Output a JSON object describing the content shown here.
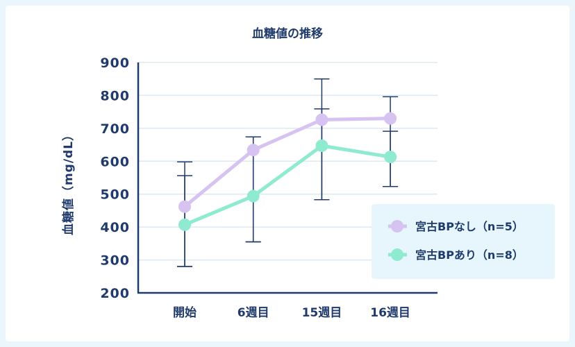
{
  "chart_data": {
    "type": "line",
    "title": "血糖値の推移",
    "ylabel": "血糖値（mg/dL）",
    "xlabel": "",
    "categories": [
      "開始",
      "6週目",
      "15週目",
      "16週目"
    ],
    "yticks": [
      "900",
      "800",
      "700",
      "600",
      "500",
      "400",
      "300",
      "200"
    ],
    "ylim": [
      200,
      900
    ],
    "grid": true,
    "legend_position": "bottom-right",
    "series": [
      {
        "name": "宮古BPなし（n=5）",
        "color": "#d6c3f2",
        "values": [
          462,
          634,
          726,
          730
        ],
        "error_low": [
          280,
          355,
          483,
          523
        ],
        "error_high": [
          598,
          674,
          850,
          796
        ]
      },
      {
        "name": "宮古BPあり（n=8）",
        "color": "#8eebd0",
        "values": [
          407,
          494,
          647,
          613
        ],
        "error_low": [
          280,
          355,
          483,
          523
        ],
        "error_high": [
          556,
          674,
          759,
          691
        ]
      }
    ],
    "axis_color": "#1f3a6b",
    "grid_color": "#dde8f0",
    "legend_bg": "#e6f6fc"
  }
}
